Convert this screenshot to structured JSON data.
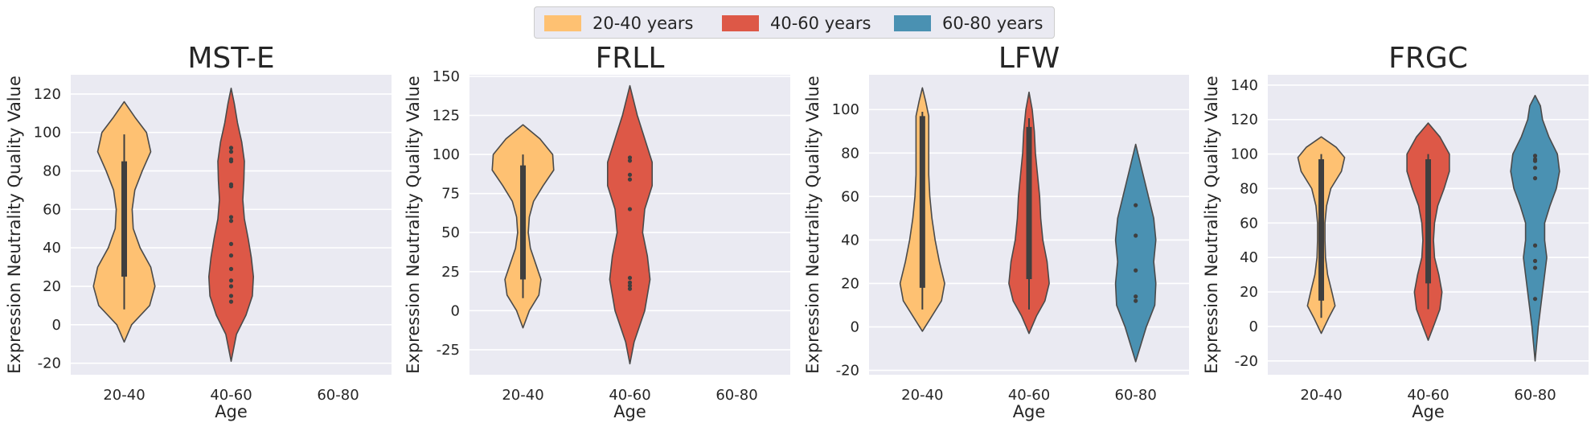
{
  "legend": {
    "items": [
      {
        "label": "20-40 years",
        "color": "#fec172"
      },
      {
        "label": "40-60 years",
        "color": "#dd5847"
      },
      {
        "label": "60-80 years",
        "color": "#4a91b2"
      }
    ]
  },
  "chart_data": [
    {
      "type": "violin",
      "title": "MST-E",
      "xlabel": "Age",
      "ylabel": "Expression Neutrality Quality Value",
      "categories": [
        "20-40",
        "40-60",
        "60-80"
      ],
      "ylim": [
        -26,
        130
      ],
      "yticks": [
        -20,
        0,
        20,
        40,
        60,
        80,
        100,
        120
      ],
      "grid": true,
      "violins": [
        {
          "category": "20-40",
          "min": -9,
          "max": 116,
          "profile": [
            [
              -9,
              0
            ],
            [
              0,
              0.14
            ],
            [
              10,
              0.48
            ],
            [
              20,
              0.58
            ],
            [
              30,
              0.5
            ],
            [
              40,
              0.3
            ],
            [
              50,
              0.17
            ],
            [
              60,
              0.15
            ],
            [
              70,
              0.2
            ],
            [
              80,
              0.34
            ],
            [
              90,
              0.5
            ],
            [
              100,
              0.42
            ],
            [
              108,
              0.2
            ],
            [
              116,
              0
            ]
          ],
          "whisker": [
            8,
            99
          ],
          "box": [
            25,
            85
          ],
          "points": []
        },
        {
          "category": "40-60",
          "min": -19,
          "max": 123,
          "profile": [
            [
              -19,
              0
            ],
            [
              -5,
              0.1
            ],
            [
              5,
              0.28
            ],
            [
              15,
              0.4
            ],
            [
              25,
              0.42
            ],
            [
              35,
              0.38
            ],
            [
              45,
              0.32
            ],
            [
              55,
              0.25
            ],
            [
              65,
              0.22
            ],
            [
              75,
              0.24
            ],
            [
              85,
              0.25
            ],
            [
              95,
              0.2
            ],
            [
              105,
              0.12
            ],
            [
              115,
              0.06
            ],
            [
              123,
              0
            ]
          ],
          "whisker": null,
          "box": null,
          "points": [
            92,
            90,
            86,
            85,
            73,
            72,
            56,
            54,
            42,
            36,
            29,
            23,
            20,
            15,
            12
          ]
        },
        {
          "category": "60-80",
          "min": null,
          "max": null,
          "profile": [],
          "whisker": null,
          "box": null,
          "points": []
        }
      ]
    },
    {
      "type": "violin",
      "title": "FRLL",
      "xlabel": "Age",
      "ylabel": "Expression Neutrality Quality Value",
      "categories": [
        "20-40",
        "40-60",
        "60-80"
      ],
      "ylim": [
        -41,
        151
      ],
      "yticks": [
        -25,
        0,
        25,
        50,
        75,
        100,
        125,
        150
      ],
      "grid": true,
      "violins": [
        {
          "category": "20-40",
          "min": -11,
          "max": 119,
          "profile": [
            [
              -11,
              0
            ],
            [
              0,
              0.12
            ],
            [
              10,
              0.3
            ],
            [
              20,
              0.34
            ],
            [
              30,
              0.24
            ],
            [
              40,
              0.14
            ],
            [
              50,
              0.1
            ],
            [
              60,
              0.12
            ],
            [
              70,
              0.2
            ],
            [
              80,
              0.38
            ],
            [
              90,
              0.58
            ],
            [
              100,
              0.56
            ],
            [
              110,
              0.32
            ],
            [
              119,
              0
            ]
          ],
          "whisker": [
            8,
            100
          ],
          "box": [
            20,
            93
          ],
          "points": []
        },
        {
          "category": "40-60",
          "min": -34,
          "max": 144,
          "profile": [
            [
              -34,
              0
            ],
            [
              -20,
              0.08
            ],
            [
              0,
              0.28
            ],
            [
              20,
              0.38
            ],
            [
              35,
              0.33
            ],
            [
              50,
              0.24
            ],
            [
              65,
              0.28
            ],
            [
              80,
              0.42
            ],
            [
              95,
              0.42
            ],
            [
              110,
              0.28
            ],
            [
              125,
              0.14
            ],
            [
              144,
              0
            ]
          ],
          "whisker": null,
          "box": null,
          "points": [
            98,
            96,
            87,
            84,
            65,
            21,
            18,
            16,
            14
          ]
        },
        {
          "category": "60-80",
          "min": null,
          "max": null,
          "profile": [],
          "whisker": null,
          "box": null,
          "points": []
        }
      ]
    },
    {
      "type": "violin",
      "title": "LFW",
      "xlabel": "Age",
      "ylabel": "Expression Neutrality Quality Value",
      "categories": [
        "20-40",
        "40-60",
        "60-80"
      ],
      "ylim": [
        -22,
        116
      ],
      "yticks": [
        -20,
        0,
        20,
        40,
        60,
        80,
        100
      ],
      "grid": true,
      "violins": [
        {
          "category": "20-40",
          "min": -2,
          "max": 110,
          "profile": [
            [
              -2,
              0
            ],
            [
              5,
              0.18
            ],
            [
              12,
              0.36
            ],
            [
              20,
              0.42
            ],
            [
              30,
              0.32
            ],
            [
              40,
              0.24
            ],
            [
              50,
              0.18
            ],
            [
              60,
              0.14
            ],
            [
              70,
              0.12
            ],
            [
              80,
              0.12
            ],
            [
              90,
              0.12
            ],
            [
              97,
              0.12
            ],
            [
              104,
              0.06
            ],
            [
              110,
              0
            ]
          ],
          "whisker": [
            8,
            99
          ],
          "box": [
            18,
            97
          ],
          "points": []
        },
        {
          "category": "40-60",
          "min": -3,
          "max": 108,
          "profile": [
            [
              -3,
              0
            ],
            [
              5,
              0.14
            ],
            [
              12,
              0.3
            ],
            [
              20,
              0.38
            ],
            [
              30,
              0.34
            ],
            [
              40,
              0.26
            ],
            [
              50,
              0.22
            ],
            [
              60,
              0.2
            ],
            [
              70,
              0.16
            ],
            [
              80,
              0.12
            ],
            [
              90,
              0.1
            ],
            [
              100,
              0.06
            ],
            [
              108,
              0
            ]
          ],
          "whisker": [
            8,
            96
          ],
          "box": [
            22,
            92
          ],
          "points": []
        },
        {
          "category": "60-80",
          "min": -16,
          "max": 84,
          "profile": [
            [
              -16,
              0
            ],
            [
              -8,
              0.1
            ],
            [
              0,
              0.2
            ],
            [
              10,
              0.36
            ],
            [
              20,
              0.38
            ],
            [
              30,
              0.34
            ],
            [
              40,
              0.38
            ],
            [
              50,
              0.34
            ],
            [
              60,
              0.24
            ],
            [
              70,
              0.14
            ],
            [
              78,
              0.06
            ],
            [
              84,
              0
            ]
          ],
          "whisker": null,
          "box": null,
          "points": [
            56,
            42,
            26,
            14,
            12
          ]
        }
      ]
    },
    {
      "type": "violin",
      "title": "FRGC",
      "xlabel": "Age",
      "ylabel": "Expression Neutrality Quality Value",
      "categories": [
        "20-40",
        "40-60",
        "60-80"
      ],
      "ylim": [
        -28,
        146
      ],
      "yticks": [
        -20,
        0,
        20,
        40,
        60,
        80,
        100,
        120,
        140
      ],
      "grid": true,
      "violins": [
        {
          "category": "20-40",
          "min": -4,
          "max": 110,
          "profile": [
            [
              -4,
              0
            ],
            [
              5,
              0.14
            ],
            [
              12,
              0.26
            ],
            [
              20,
              0.2
            ],
            [
              30,
              0.12
            ],
            [
              40,
              0.08
            ],
            [
              50,
              0.07
            ],
            [
              60,
              0.07
            ],
            [
              70,
              0.1
            ],
            [
              80,
              0.18
            ],
            [
              90,
              0.38
            ],
            [
              98,
              0.44
            ],
            [
              104,
              0.28
            ],
            [
              110,
              0
            ]
          ],
          "whisker": [
            5,
            100
          ],
          "box": [
            15,
            97
          ],
          "points": []
        },
        {
          "category": "40-60",
          "min": -8,
          "max": 118,
          "profile": [
            [
              -8,
              0
            ],
            [
              0,
              0.1
            ],
            [
              10,
              0.22
            ],
            [
              20,
              0.26
            ],
            [
              30,
              0.2
            ],
            [
              40,
              0.12
            ],
            [
              50,
              0.1
            ],
            [
              60,
              0.12
            ],
            [
              70,
              0.18
            ],
            [
              80,
              0.3
            ],
            [
              90,
              0.4
            ],
            [
              100,
              0.4
            ],
            [
              110,
              0.22
            ],
            [
              118,
              0
            ]
          ],
          "whisker": [
            10,
            100
          ],
          "box": [
            25,
            97
          ],
          "points": []
        },
        {
          "category": "60-80",
          "min": -20,
          "max": 134,
          "profile": [
            [
              -20,
              0
            ],
            [
              0,
              0.06
            ],
            [
              10,
              0.1
            ],
            [
              20,
              0.14
            ],
            [
              30,
              0.18
            ],
            [
              40,
              0.22
            ],
            [
              50,
              0.18
            ],
            [
              60,
              0.18
            ],
            [
              70,
              0.28
            ],
            [
              80,
              0.4
            ],
            [
              90,
              0.46
            ],
            [
              100,
              0.42
            ],
            [
              110,
              0.26
            ],
            [
              120,
              0.14
            ],
            [
              128,
              0.1
            ],
            [
              134,
              0
            ]
          ],
          "whisker": null,
          "box": null,
          "points": [
            99,
            97,
            96,
            92,
            86,
            47,
            38,
            34,
            16
          ]
        }
      ]
    }
  ]
}
